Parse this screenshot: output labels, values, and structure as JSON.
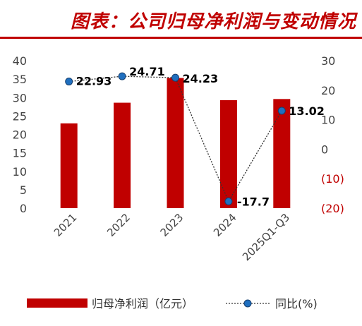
{
  "title": "图表：公司归母净利润与变动情况",
  "colors": {
    "bar": "#c00000",
    "line": "#333333",
    "marker": "#1f6fbf",
    "marker_edge": "#173f6e",
    "negative_tick": "#c00000",
    "title": "#c00000"
  },
  "chart_data": {
    "type": "bar",
    "categories": [
      "2021",
      "2022",
      "2023",
      "2024",
      "2025Q1-Q3"
    ],
    "series": [
      {
        "name": "归母净利润（亿元）",
        "type": "bar",
        "axis": "left",
        "values": [
          23.0,
          28.6,
          35.3,
          29.3,
          29.6
        ]
      },
      {
        "name": "同比(%)",
        "type": "line",
        "axis": "right",
        "values": [
          22.93,
          24.71,
          24.23,
          -17.7,
          13.02
        ]
      }
    ],
    "data_labels": [
      "22.93",
      "24.71",
      "24.23",
      "-17.7",
      "13.02"
    ],
    "y_left": {
      "lim": [
        0,
        40
      ],
      "ticks": [
        "40",
        "35",
        "30",
        "25",
        "20",
        "15",
        "10",
        "5",
        "0"
      ]
    },
    "y_right": {
      "lim": [
        -20,
        30
      ],
      "ticks": [
        "30",
        "20",
        "10",
        "0",
        "(10)",
        "(20)"
      ]
    },
    "grid": false,
    "legend": {
      "position": "bottom",
      "items": [
        {
          "label": "归母净利润（亿元）"
        },
        {
          "label": "同比(%)"
        }
      ]
    }
  }
}
